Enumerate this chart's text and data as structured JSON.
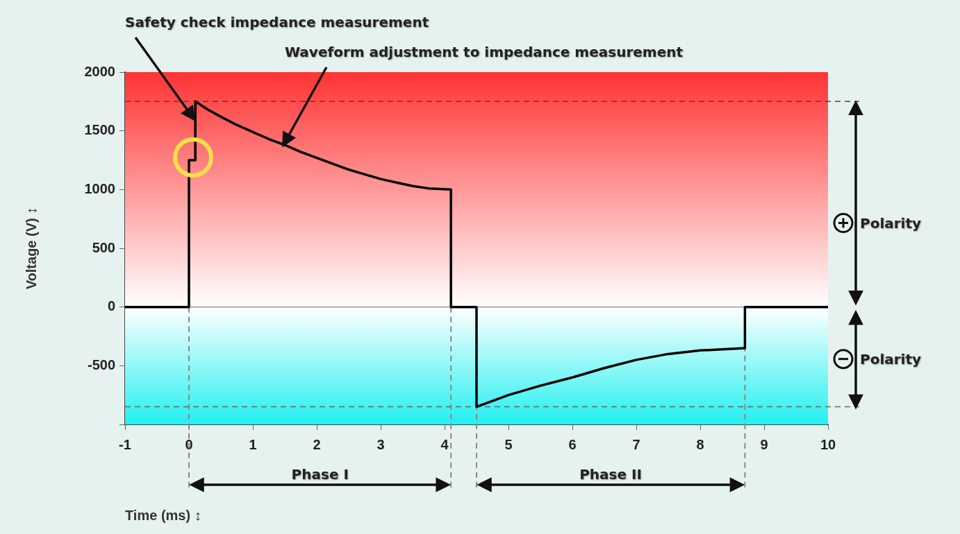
{
  "chart_data": {
    "type": "line",
    "xlabel": "Time (ms) ↕",
    "ylabel": "Voltage (V) ↕",
    "xlim": [
      -1,
      10
    ],
    "xticks": [
      -1,
      0,
      1,
      2,
      3,
      4,
      5,
      6,
      7,
      8,
      9,
      10
    ],
    "ylim": [
      -1000,
      2000
    ],
    "yticks": [
      {
        "value": -1000,
        "label": null
      },
      -500,
      0,
      500,
      1000,
      1500,
      2000
    ],
    "grid": false,
    "legend": false,
    "marker": "none",
    "line_style": "solid",
    "series": [
      {
        "color": "#000000",
        "x": [
          -1,
          0,
          0,
          0.1,
          0.1,
          0.3,
          0.5,
          0.75,
          1,
          1.25,
          1.5,
          1.75,
          2,
          2.25,
          2.5,
          2.75,
          3,
          3.25,
          3.5,
          3.75,
          4.1,
          4.1,
          4.5,
          4.5,
          5,
          5.5,
          6,
          6.5,
          7,
          7.5,
          8,
          8.7,
          8.7,
          10
        ],
        "values": [
          0,
          0,
          1250,
          1250,
          1750,
          1680,
          1620,
          1550,
          1490,
          1430,
          1380,
          1320,
          1270,
          1220,
          1170,
          1130,
          1090,
          1060,
          1030,
          1010,
          1000,
          0,
          0,
          -850,
          -750,
          -670,
          -600,
          -520,
          -450,
          -400,
          -370,
          -350,
          0,
          0
        ]
      }
    ],
    "bands": [
      {
        "axis": "y",
        "from": 0,
        "to": 2000,
        "color": "#ff3333"
      },
      {
        "axis": "y",
        "from": -1000,
        "to": 0,
        "color": "#22f0f0"
      }
    ],
    "ref_lines": [
      {
        "axis": "x",
        "value": 0,
        "color": "#888888",
        "line_style": "dashed"
      },
      {
        "axis": "x",
        "value": 4.1,
        "color": "#888888",
        "line_style": "dashed"
      },
      {
        "axis": "x",
        "value": 4.5,
        "color": "#888888",
        "line_style": "dashed"
      },
      {
        "axis": "x",
        "value": 8.7,
        "color": "#888888",
        "line_style": "dashed"
      },
      {
        "axis": "y",
        "value": 1750,
        "color": "#992222",
        "line_style": "dashed"
      },
      {
        "axis": "y",
        "value": -850,
        "color": "#666666",
        "line_style": "dashed"
      },
      {
        "axis": "y",
        "value": 0,
        "color": "#999999",
        "line_style": "solid"
      }
    ],
    "annotations": [
      {
        "text": "Safety check impedance measurement",
        "x": 0.1,
        "y": 1600
      },
      {
        "text": "Waveform adjustment to impedance measurement",
        "x": 1.5,
        "y": 1380
      },
      "Phase I",
      "Phase II",
      "Polarity",
      "Polarity"
    ]
  }
}
